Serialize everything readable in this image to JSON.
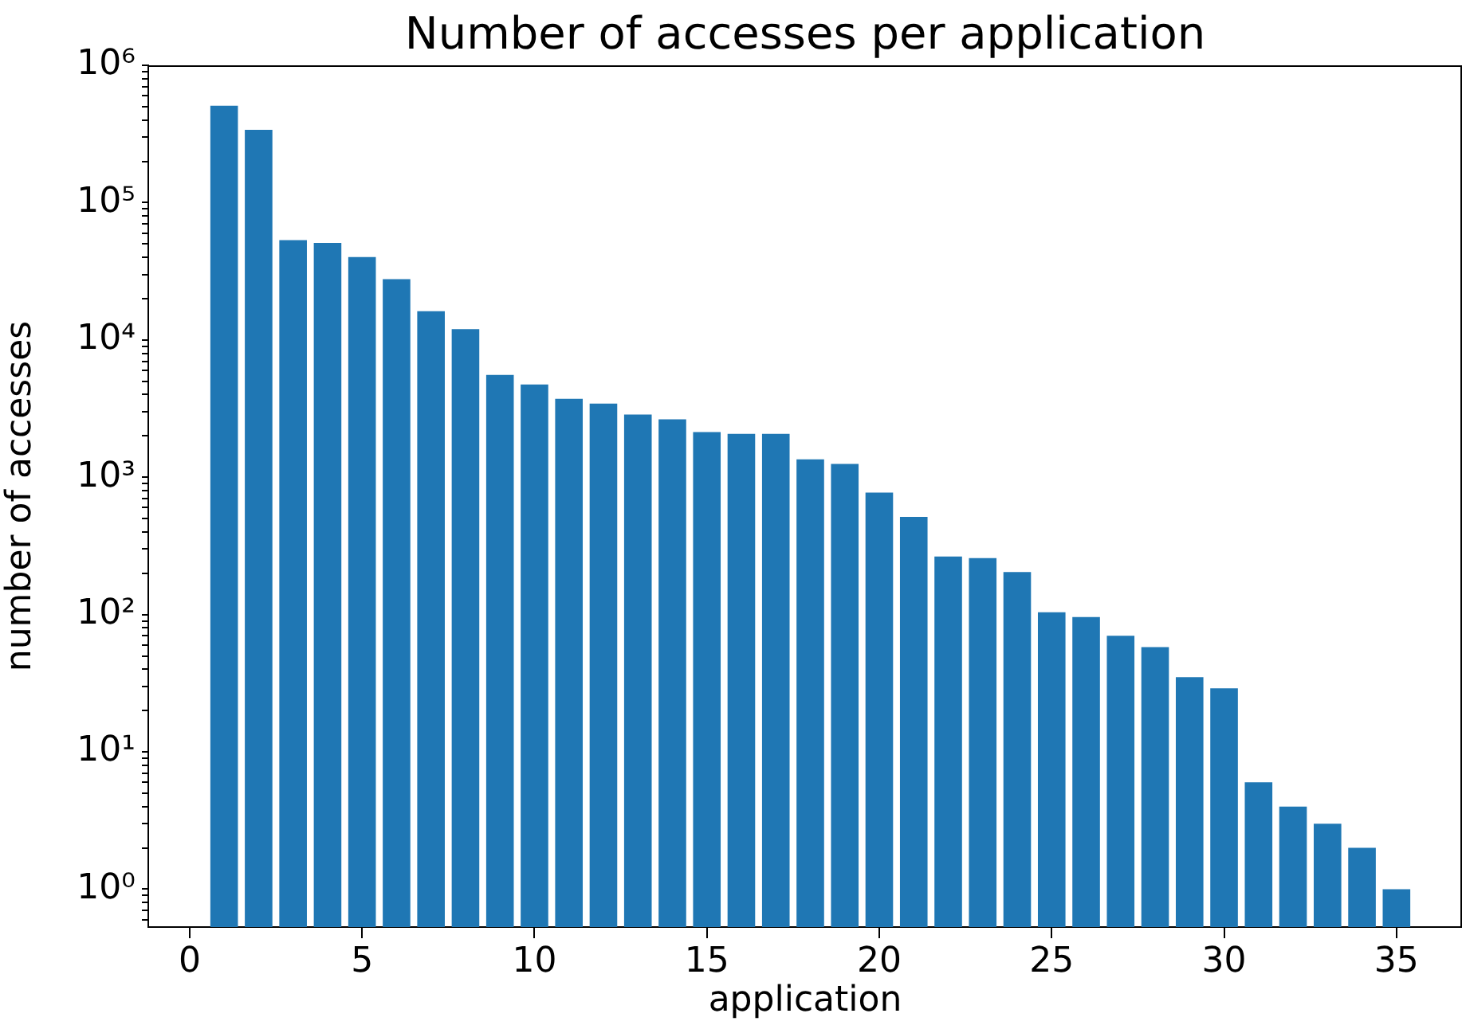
{
  "chart_data": {
    "type": "bar",
    "title": "Number of accesses per application",
    "xlabel": "application",
    "ylabel": "number of accesses",
    "x": [
      1,
      2,
      3,
      4,
      5,
      6,
      7,
      8,
      9,
      10,
      11,
      12,
      13,
      14,
      15,
      16,
      17,
      18,
      19,
      20,
      21,
      22,
      23,
      24,
      25,
      26,
      27,
      28,
      29,
      30,
      31,
      32,
      33,
      34,
      35
    ],
    "values": [
      507000,
      339000,
      53400,
      50900,
      40100,
      27700,
      16200,
      12000,
      5570,
      4740,
      3730,
      3440,
      2860,
      2640,
      2130,
      2070,
      2070,
      1350,
      1250,
      773,
      515,
      265,
      258,
      204,
      104,
      96,
      70,
      58,
      35,
      29,
      6,
      4,
      3,
      2,
      1
    ],
    "color": "#1f77b4",
    "log": "y",
    "xlim": [
      -1.2,
      36.9
    ],
    "xticks": [
      0,
      5,
      10,
      15,
      20,
      25,
      30,
      35
    ],
    "ylim": [
      0.53,
      1000000
    ],
    "yticks": [
      {
        "value": 0.6,
        "label": null
      },
      {
        "value": 0.7,
        "label": null
      },
      {
        "value": 0.8,
        "label": null
      },
      {
        "value": 0.9,
        "label": null
      },
      {
        "value": 1,
        "label": "10⁰"
      },
      {
        "value": 2,
        "label": null
      },
      {
        "value": 3,
        "label": null
      },
      {
        "value": 4,
        "label": null
      },
      {
        "value": 5,
        "label": null
      },
      {
        "value": 6,
        "label": null
      },
      {
        "value": 7,
        "label": null
      },
      {
        "value": 8,
        "label": null
      },
      {
        "value": 9,
        "label": null
      },
      {
        "value": 10,
        "label": "10¹"
      },
      {
        "value": 20,
        "label": null
      },
      {
        "value": 30,
        "label": null
      },
      {
        "value": 40,
        "label": null
      },
      {
        "value": 50,
        "label": null
      },
      {
        "value": 60,
        "label": null
      },
      {
        "value": 70,
        "label": null
      },
      {
        "value": 80,
        "label": null
      },
      {
        "value": 90,
        "label": null
      },
      {
        "value": 100,
        "label": "10²"
      },
      {
        "value": 200,
        "label": null
      },
      {
        "value": 300,
        "label": null
      },
      {
        "value": 400,
        "label": null
      },
      {
        "value": 500,
        "label": null
      },
      {
        "value": 600,
        "label": null
      },
      {
        "value": 700,
        "label": null
      },
      {
        "value": 800,
        "label": null
      },
      {
        "value": 900,
        "label": null
      },
      {
        "value": 1000,
        "label": "10³"
      },
      {
        "value": 2000,
        "label": null
      },
      {
        "value": 3000,
        "label": null
      },
      {
        "value": 4000,
        "label": null
      },
      {
        "value": 5000,
        "label": null
      },
      {
        "value": 6000,
        "label": null
      },
      {
        "value": 7000,
        "label": null
      },
      {
        "value": 8000,
        "label": null
      },
      {
        "value": 9000,
        "label": null
      },
      {
        "value": 10000,
        "label": "10⁴"
      },
      {
        "value": 20000,
        "label": null
      },
      {
        "value": 30000,
        "label": null
      },
      {
        "value": 40000,
        "label": null
      },
      {
        "value": 50000,
        "label": null
      },
      {
        "value": 60000,
        "label": null
      },
      {
        "value": 70000,
        "label": null
      },
      {
        "value": 80000,
        "label": null
      },
      {
        "value": 90000,
        "label": null
      },
      {
        "value": 100000,
        "label": "10⁵"
      },
      {
        "value": 200000,
        "label": null
      },
      {
        "value": 300000,
        "label": null
      },
      {
        "value": 400000,
        "label": null
      },
      {
        "value": 500000,
        "label": null
      },
      {
        "value": 600000,
        "label": null
      },
      {
        "value": 700000,
        "label": null
      },
      {
        "value": 800000,
        "label": null
      },
      {
        "value": 900000,
        "label": null
      },
      {
        "value": 1000000,
        "label": "10⁶"
      }
    ],
    "grid": false,
    "legend": false
  }
}
